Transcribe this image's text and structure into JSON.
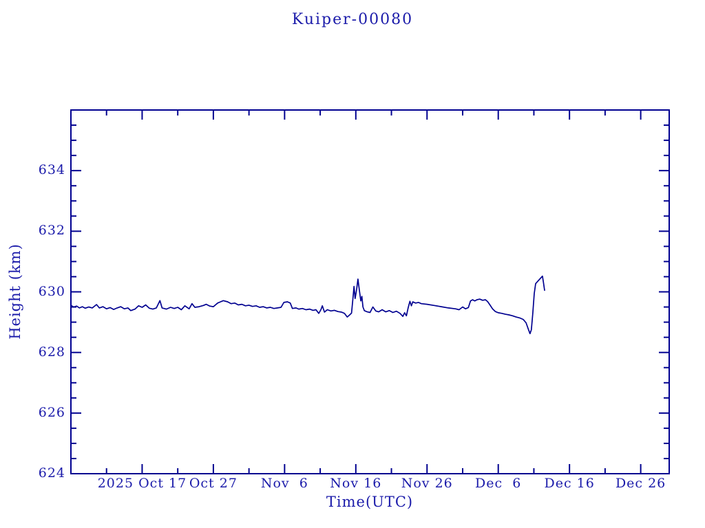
{
  "chart_data": {
    "type": "line",
    "title": "Kuiper-00080",
    "xlabel": "Time(UTC)",
    "ylabel": "Height (km)",
    "x_axis": {
      "unit": "days since 2025-10-07 UTC",
      "range": [
        0,
        84
      ],
      "major_ticks": [
        {
          "day": 10,
          "label": "2025 Oct 17"
        },
        {
          "day": 20,
          "label": "Oct 27"
        },
        {
          "day": 30,
          "label": "Nov  6"
        },
        {
          "day": 40,
          "label": "Nov 16"
        },
        {
          "day": 50,
          "label": "Nov 26"
        },
        {
          "day": 60,
          "label": "Dec  6"
        },
        {
          "day": 70,
          "label": "Dec 16"
        },
        {
          "day": 80,
          "label": "Dec 26"
        }
      ],
      "minor_tick_step_days": 5
    },
    "y_axis": {
      "range": [
        624,
        636
      ],
      "major_ticks": [
        624,
        626,
        628,
        630,
        632,
        634
      ],
      "minor_tick_step_km": 0.5
    },
    "grid": "off",
    "legend": "none",
    "series": [
      {
        "name": "height",
        "points": [
          [
            0,
            629.55
          ],
          [
            0.4,
            629.5
          ],
          [
            0.8,
            629.53
          ],
          [
            1.2,
            629.47
          ],
          [
            1.6,
            629.51
          ],
          [
            2,
            629.46
          ],
          [
            2.5,
            629.5
          ],
          [
            3,
            629.47
          ],
          [
            3.6,
            629.58
          ],
          [
            4,
            629.47
          ],
          [
            4.5,
            629.51
          ],
          [
            5,
            629.44
          ],
          [
            5.5,
            629.48
          ],
          [
            6,
            629.42
          ],
          [
            6.5,
            629.47
          ],
          [
            7,
            629.51
          ],
          [
            7.5,
            629.44
          ],
          [
            8,
            629.47
          ],
          [
            8.4,
            629.38
          ],
          [
            9,
            629.43
          ],
          [
            9.5,
            629.54
          ],
          [
            10,
            629.49
          ],
          [
            10.5,
            629.57
          ],
          [
            11,
            629.46
          ],
          [
            11.5,
            629.43
          ],
          [
            12,
            629.47
          ],
          [
            12.5,
            629.71
          ],
          [
            12.8,
            629.47
          ],
          [
            13.4,
            629.43
          ],
          [
            14,
            629.49
          ],
          [
            14.5,
            629.45
          ],
          [
            15,
            629.49
          ],
          [
            15.5,
            629.41
          ],
          [
            16,
            629.54
          ],
          [
            16.6,
            629.44
          ],
          [
            17,
            629.61
          ],
          [
            17.4,
            629.49
          ],
          [
            18,
            629.51
          ],
          [
            18.6,
            629.55
          ],
          [
            19,
            629.59
          ],
          [
            19.5,
            629.53
          ],
          [
            20,
            629.51
          ],
          [
            20.6,
            629.63
          ],
          [
            21,
            629.67
          ],
          [
            21.4,
            629.71
          ],
          [
            22,
            629.67
          ],
          [
            22.5,
            629.61
          ],
          [
            23,
            629.63
          ],
          [
            23.5,
            629.57
          ],
          [
            24,
            629.59
          ],
          [
            24.5,
            629.54
          ],
          [
            25,
            629.56
          ],
          [
            25.5,
            629.52
          ],
          [
            26,
            629.54
          ],
          [
            26.5,
            629.49
          ],
          [
            27,
            629.51
          ],
          [
            27.5,
            629.47
          ],
          [
            28,
            629.49
          ],
          [
            28.5,
            629.45
          ],
          [
            29,
            629.47
          ],
          [
            29.5,
            629.49
          ],
          [
            29.9,
            629.65
          ],
          [
            30.4,
            629.67
          ],
          [
            30.8,
            629.63
          ],
          [
            31.1,
            629.45
          ],
          [
            31.6,
            629.47
          ],
          [
            32,
            629.43
          ],
          [
            32.5,
            629.45
          ],
          [
            33,
            629.41
          ],
          [
            33.5,
            629.43
          ],
          [
            34,
            629.39
          ],
          [
            34.4,
            629.41
          ],
          [
            34.8,
            629.29
          ],
          [
            35.1,
            629.41
          ],
          [
            35.3,
            629.54
          ],
          [
            35.6,
            629.33
          ],
          [
            36,
            629.41
          ],
          [
            36.5,
            629.37
          ],
          [
            37,
            629.39
          ],
          [
            37.5,
            629.35
          ],
          [
            38,
            629.33
          ],
          [
            38.4,
            629.29
          ],
          [
            38.8,
            629.17
          ],
          [
            39.1,
            629.23
          ],
          [
            39.4,
            629.3
          ],
          [
            39.6,
            629.8
          ],
          [
            39.75,
            630.18
          ],
          [
            39.9,
            629.78
          ],
          [
            40.1,
            630.05
          ],
          [
            40.3,
            630.42
          ],
          [
            40.5,
            630.05
          ],
          [
            40.7,
            629.7
          ],
          [
            40.85,
            629.85
          ],
          [
            41,
            629.5
          ],
          [
            41.2,
            629.38
          ],
          [
            41.6,
            629.34
          ],
          [
            42,
            629.32
          ],
          [
            42.4,
            629.5
          ],
          [
            42.8,
            629.37
          ],
          [
            43.2,
            629.34
          ],
          [
            43.7,
            629.41
          ],
          [
            44.2,
            629.34
          ],
          [
            44.7,
            629.38
          ],
          [
            45.2,
            629.32
          ],
          [
            45.7,
            629.36
          ],
          [
            46.2,
            629.29
          ],
          [
            46.6,
            629.19
          ],
          [
            46.85,
            629.31
          ],
          [
            47.1,
            629.21
          ],
          [
            47.35,
            629.47
          ],
          [
            47.6,
            629.69
          ],
          [
            47.8,
            629.54
          ],
          [
            48,
            629.67
          ],
          [
            48.4,
            629.63
          ],
          [
            48.8,
            629.65
          ],
          [
            49.2,
            629.61
          ],
          [
            50,
            629.59
          ],
          [
            51,
            629.55
          ],
          [
            52,
            629.51
          ],
          [
            53,
            629.47
          ],
          [
            54,
            629.44
          ],
          [
            54.5,
            629.41
          ],
          [
            55,
            629.5
          ],
          [
            55.4,
            629.44
          ],
          [
            55.8,
            629.48
          ],
          [
            56.1,
            629.7
          ],
          [
            56.4,
            629.74
          ],
          [
            56.7,
            629.7
          ],
          [
            57,
            629.74
          ],
          [
            57.4,
            629.76
          ],
          [
            57.8,
            629.72
          ],
          [
            58.2,
            629.74
          ],
          [
            58.5,
            629.68
          ],
          [
            58.8,
            629.58
          ],
          [
            59.2,
            629.44
          ],
          [
            59.6,
            629.35
          ],
          [
            60,
            629.31
          ],
          [
            60.5,
            629.29
          ],
          [
            61,
            629.26
          ],
          [
            61.5,
            629.24
          ],
          [
            62,
            629.21
          ],
          [
            62.5,
            629.17
          ],
          [
            63,
            629.14
          ],
          [
            63.5,
            629.09
          ],
          [
            63.9,
            628.98
          ],
          [
            64.2,
            628.78
          ],
          [
            64.45,
            628.62
          ],
          [
            64.65,
            628.75
          ],
          [
            64.85,
            629.3
          ],
          [
            65.05,
            629.95
          ],
          [
            65.25,
            630.27
          ],
          [
            65.6,
            630.36
          ],
          [
            65.9,
            630.44
          ],
          [
            66.2,
            630.52
          ],
          [
            66.35,
            630.3
          ],
          [
            66.5,
            630.05
          ]
        ]
      }
    ],
    "colors": {
      "line": "#000090",
      "axis": "#000090",
      "text": "#1b1baa",
      "background": "#ffffff"
    }
  }
}
